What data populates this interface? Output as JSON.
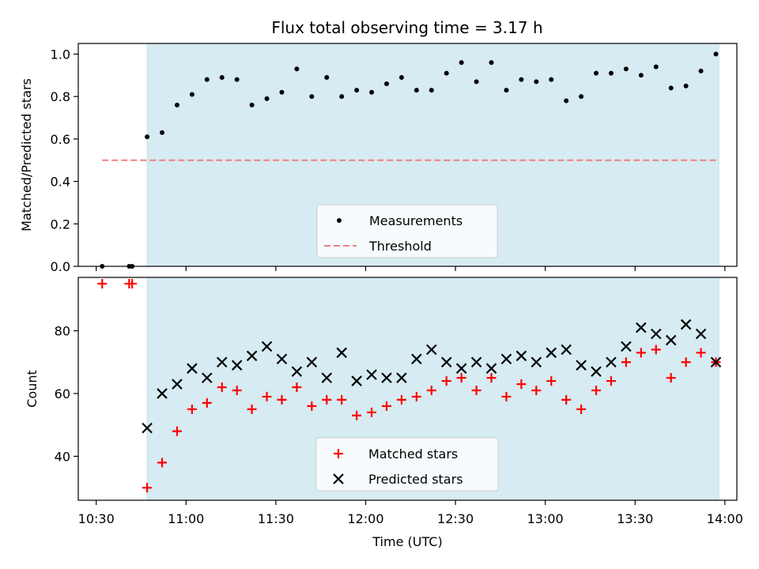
{
  "chart_data": [
    {
      "type": "scatter",
      "title": "Flux total observing time = 3.17 h",
      "xlabel": "",
      "ylabel": "Matched/Predicted stars",
      "xlim": [
        "10:24",
        "14:04"
      ],
      "ylim": [
        0,
        1.05
      ],
      "yticks": [
        0.0,
        0.2,
        0.4,
        0.6,
        0.8,
        1.0
      ],
      "ytick_labels": [
        "0.0",
        "0.2",
        "0.4",
        "0.6",
        "0.8",
        "1.0"
      ],
      "xticks": [
        "10:30",
        "11:00",
        "11:30",
        "12:00",
        "12:30",
        "13:00",
        "13:30",
        "14:00"
      ],
      "shaded_interval": [
        "10:47",
        "13:58"
      ],
      "shaded_color": "#add8e6",
      "legend_position": "lower center",
      "series": [
        {
          "name": "Measurements",
          "marker": "dot",
          "color": "#000000",
          "x": [
            "10:32",
            "10:41",
            "10:42",
            "10:47",
            "10:52",
            "10:57",
            "11:02",
            "11:07",
            "11:12",
            "11:17",
            "11:22",
            "11:27",
            "11:32",
            "11:37",
            "11:42",
            "11:47",
            "11:52",
            "11:57",
            "12:02",
            "12:07",
            "12:12",
            "12:17",
            "12:22",
            "12:27",
            "12:32",
            "12:37",
            "12:42",
            "12:47",
            "12:52",
            "12:57",
            "13:02",
            "13:07",
            "13:12",
            "13:17",
            "13:22",
            "13:27",
            "13:32",
            "13:37",
            "13:42",
            "13:47",
            "13:52",
            "13:57"
          ],
          "y": [
            0.0,
            0.0,
            0.0,
            0.61,
            0.63,
            0.76,
            0.81,
            0.88,
            0.89,
            0.88,
            0.76,
            0.79,
            0.82,
            0.93,
            0.8,
            0.89,
            0.8,
            0.83,
            0.82,
            0.86,
            0.89,
            0.83,
            0.83,
            0.91,
            0.96,
            0.87,
            0.96,
            0.83,
            0.88,
            0.87,
            0.88,
            0.78,
            0.8,
            0.91,
            0.91,
            0.93,
            0.9,
            0.94,
            0.84,
            0.85,
            0.92,
            1.0
          ]
        },
        {
          "name": "Threshold",
          "marker": "dashed-line",
          "color": "#f08080",
          "x": [
            "10:32",
            "13:58"
          ],
          "y": [
            0.5,
            0.5
          ]
        }
      ]
    },
    {
      "type": "scatter",
      "title": "",
      "xlabel": "Time (UTC)",
      "ylabel": "Count",
      "xlim": [
        "10:24",
        "14:04"
      ],
      "ylim": [
        26,
        97
      ],
      "yticks": [
        40,
        60,
        80
      ],
      "ytick_labels": [
        "40",
        "60",
        "80"
      ],
      "xticks": [
        "10:30",
        "11:00",
        "11:30",
        "12:00",
        "12:30",
        "13:00",
        "13:30",
        "14:00"
      ],
      "xtick_labels": [
        "10:30",
        "11:00",
        "11:30",
        "12:00",
        "12:30",
        "13:00",
        "13:30",
        "14:00"
      ],
      "shaded_interval": [
        "10:47",
        "13:58"
      ],
      "shaded_color": "#add8e6",
      "legend_position": "lower center",
      "series": [
        {
          "name": "Matched stars",
          "marker": "plus",
          "color": "#ff0000",
          "x": [
            "10:32",
            "10:41",
            "10:42",
            "10:47",
            "10:52",
            "10:57",
            "11:02",
            "11:07",
            "11:12",
            "11:17",
            "11:22",
            "11:27",
            "11:32",
            "11:37",
            "11:42",
            "11:47",
            "11:52",
            "11:57",
            "12:02",
            "12:07",
            "12:12",
            "12:17",
            "12:22",
            "12:27",
            "12:32",
            "12:37",
            "12:42",
            "12:47",
            "12:52",
            "12:57",
            "13:02",
            "13:07",
            "13:12",
            "13:17",
            "13:22",
            "13:27",
            "13:32",
            "13:37",
            "13:42",
            "13:47",
            "13:52",
            "13:57"
          ],
          "y": [
            95,
            95,
            95,
            30,
            38,
            48,
            55,
            57,
            62,
            61,
            55,
            59,
            58,
            62,
            56,
            58,
            58,
            53,
            54,
            56,
            58,
            59,
            61,
            64,
            65,
            61,
            65,
            59,
            63,
            61,
            64,
            58,
            55,
            61,
            64,
            70,
            73,
            74,
            65,
            70,
            73,
            70
          ]
        },
        {
          "name": "Predicted stars",
          "marker": "x",
          "color": "#000000",
          "x": [
            "10:47",
            "10:52",
            "10:57",
            "11:02",
            "11:07",
            "11:12",
            "11:17",
            "11:22",
            "11:27",
            "11:32",
            "11:37",
            "11:42",
            "11:47",
            "11:52",
            "11:57",
            "12:02",
            "12:07",
            "12:12",
            "12:17",
            "12:22",
            "12:27",
            "12:32",
            "12:37",
            "12:42",
            "12:47",
            "12:52",
            "12:57",
            "13:02",
            "13:07",
            "13:12",
            "13:17",
            "13:22",
            "13:27",
            "13:32",
            "13:37",
            "13:42",
            "13:47",
            "13:52",
            "13:57"
          ],
          "y": [
            49,
            60,
            63,
            68,
            65,
            70,
            69,
            72,
            75,
            71,
            67,
            70,
            65,
            73,
            64,
            66,
            65,
            65,
            71,
            74,
            70,
            68,
            70,
            68,
            71,
            72,
            70,
            73,
            74,
            69,
            67,
            70,
            75,
            81,
            79,
            77,
            82,
            79,
            70
          ]
        }
      ]
    }
  ]
}
